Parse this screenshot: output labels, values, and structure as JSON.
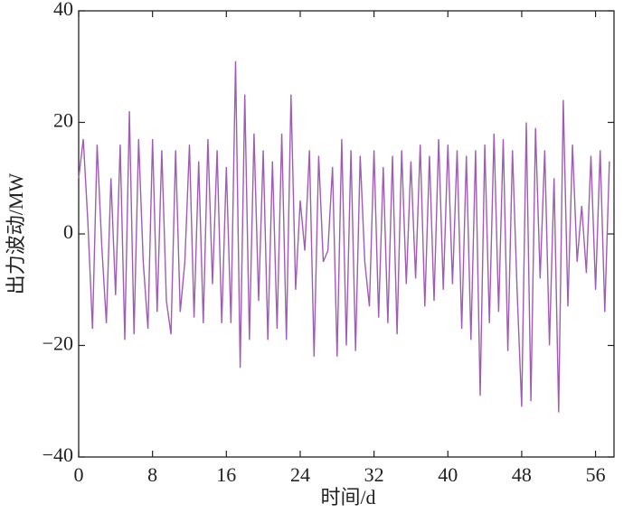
{
  "chart_data": {
    "type": "line",
    "xlabel": "时间/d",
    "ylabel": "出力波动/MW",
    "color": "#a05cb4",
    "xlim": [
      0,
      58
    ],
    "xticks": [
      0,
      8,
      16,
      24,
      32,
      40,
      48,
      56
    ],
    "ylim": [
      -40,
      40
    ],
    "yticks": [
      {
        "value": -40,
        "label": "−40"
      },
      {
        "value": -20,
        "label": "−20"
      },
      0,
      20,
      40
    ],
    "x": [
      0,
      0.5,
      1,
      1.5,
      2,
      2.5,
      3,
      3.5,
      4,
      4.5,
      5,
      5.5,
      6,
      6.5,
      7,
      7.5,
      8,
      8.5,
      9,
      9.5,
      10,
      10.5,
      11,
      11.5,
      12,
      12.5,
      13,
      13.5,
      14,
      14.5,
      15,
      15.5,
      16,
      16.5,
      17,
      17.5,
      18,
      18.5,
      19,
      19.5,
      20,
      20.5,
      21,
      21.5,
      22,
      22.5,
      23,
      23.5,
      24,
      24.5,
      25,
      25.5,
      26,
      26.5,
      27,
      27.5,
      28,
      28.5,
      29,
      29.5,
      30,
      30.5,
      31,
      31.5,
      32,
      32.5,
      33,
      33.5,
      34,
      34.5,
      35,
      35.5,
      36,
      36.5,
      37,
      37.5,
      38,
      38.5,
      39,
      39.5,
      40,
      40.5,
      41,
      41.5,
      42,
      42.5,
      43,
      43.5,
      44,
      44.5,
      45,
      45.5,
      46,
      46.5,
      47,
      47.5,
      48,
      48.5,
      49,
      49.5,
      50,
      50.5,
      51,
      51.5,
      52,
      52.5,
      53,
      53.5,
      54,
      54.5,
      55,
      55.5,
      56,
      56.5,
      57,
      57.5
    ],
    "values": [
      10,
      17,
      2,
      -17,
      16,
      -2,
      -16,
      10,
      -11,
      16,
      -19,
      22,
      -18,
      17,
      -5,
      -17,
      17,
      -14,
      15,
      -12,
      -18,
      15,
      -14,
      -5,
      16,
      -15,
      13,
      -16,
      17,
      -9,
      15,
      -16,
      12,
      -16,
      31,
      -24,
      25,
      -19,
      18,
      -12,
      15,
      -19,
      13,
      -17,
      18,
      -19,
      25,
      -10,
      6,
      -3,
      15,
      -22,
      14,
      -5,
      -3,
      12,
      -22,
      17,
      -20,
      15,
      -21,
      14,
      -5,
      -13,
      15,
      -15,
      12,
      -16,
      14,
      -18,
      15,
      -9,
      13,
      -8,
      16,
      -13,
      14,
      -12,
      17,
      -10,
      16,
      -9,
      15,
      -17,
      14,
      -19,
      15,
      -29,
      16,
      -16,
      18,
      -14,
      17,
      -21,
      15,
      -10,
      -31,
      20,
      -30,
      19,
      -8,
      15,
      -20,
      10,
      -32,
      24,
      -13,
      16,
      -5,
      5,
      -7,
      14,
      -10,
      15,
      -14,
      13
    ]
  }
}
